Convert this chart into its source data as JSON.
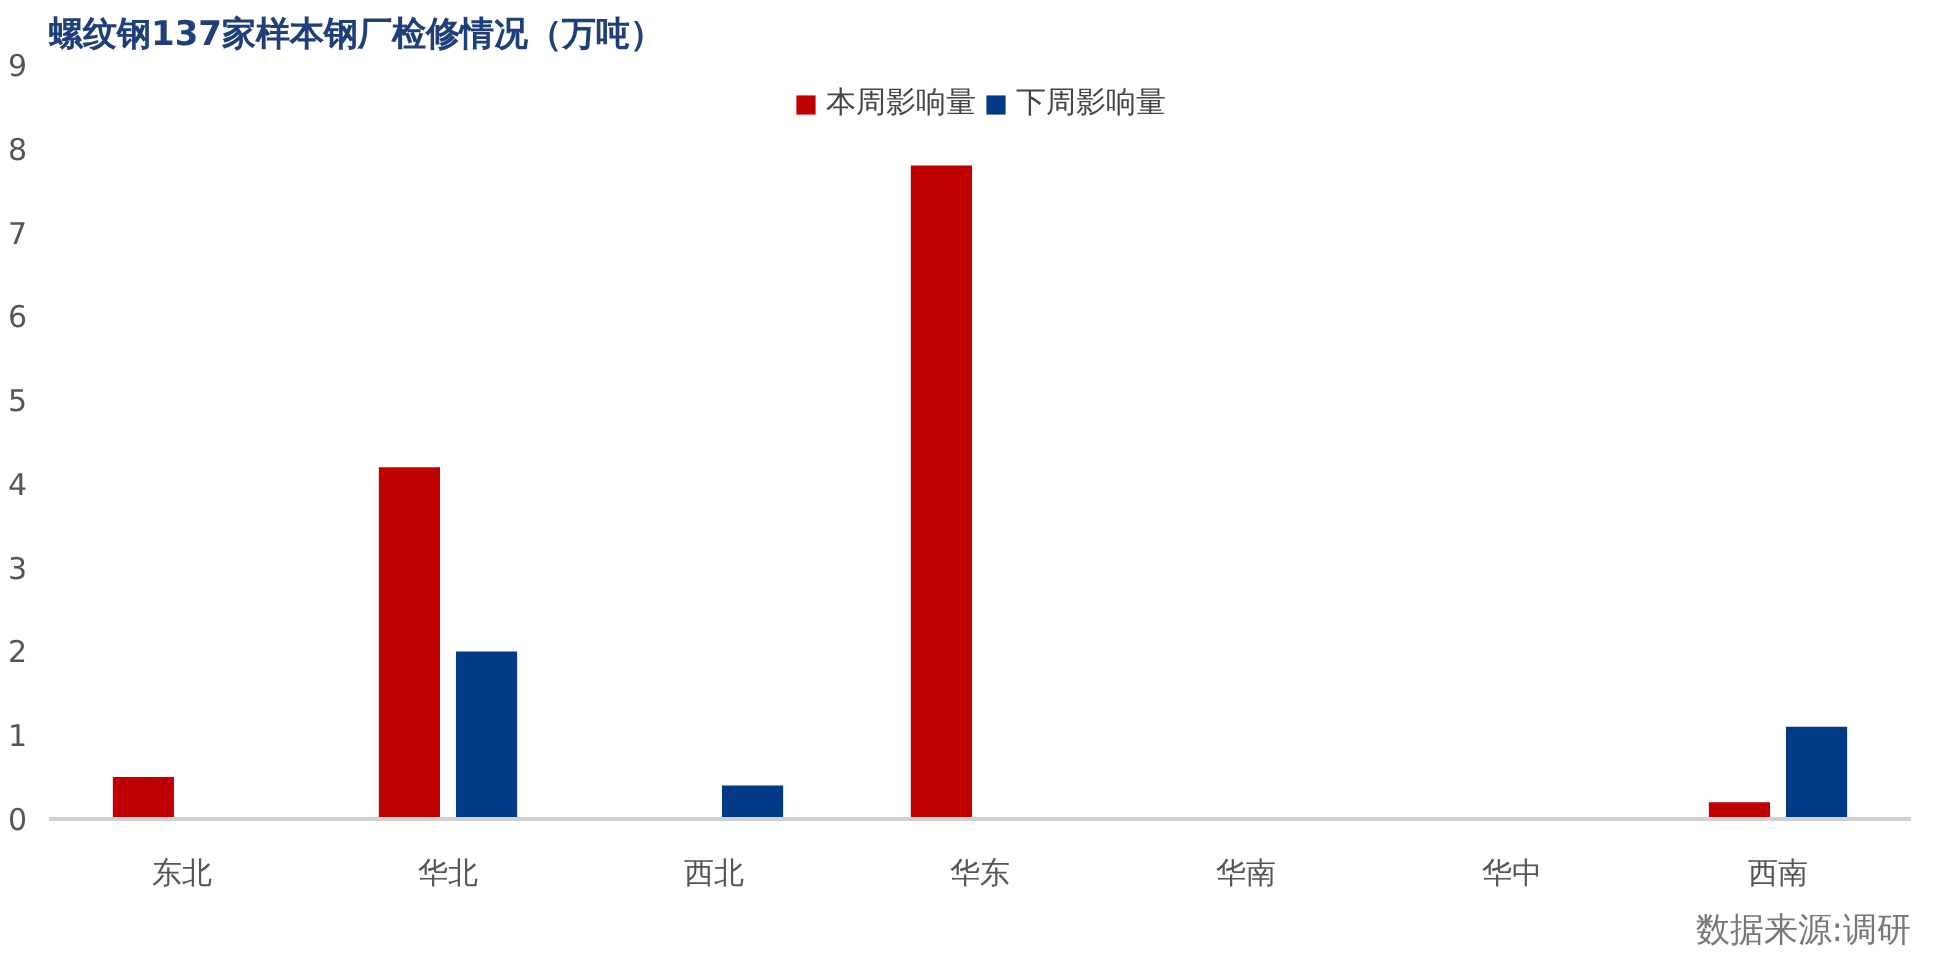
{
  "chart_data": {
    "type": "bar",
    "title": "螺纹钢137家样本钢厂检修情况（万吨）",
    "categories": [
      "东北",
      "华北",
      "西北",
      "华东",
      "华南",
      "华中",
      "西南"
    ],
    "series": [
      {
        "name": "本周影响量",
        "color": "#c00000",
        "values": [
          0.5,
          4.2,
          0,
          7.8,
          0,
          0,
          0.2
        ]
      },
      {
        "name": "下周影响量",
        "color": "#003a86",
        "values": [
          0,
          2.0,
          0.4,
          0,
          0,
          0,
          1.1
        ]
      }
    ],
    "ylim": [
      0,
      9
    ],
    "yticks": [
      0,
      1,
      2,
      3,
      4,
      5,
      6,
      7,
      8,
      9
    ],
    "grid": false,
    "legend": "top",
    "annotations": [
      "数据来源:调研"
    ]
  }
}
